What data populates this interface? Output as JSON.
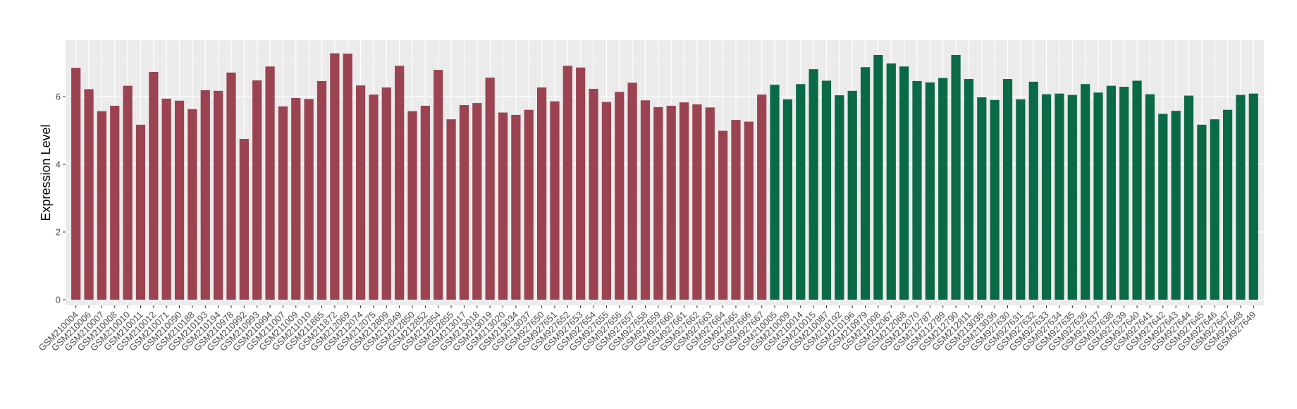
{
  "chart_data": {
    "type": "bar",
    "title": "",
    "xlabel": "",
    "ylabel": "Expression Level",
    "ylim": [
      0,
      7.6
    ],
    "y_ticks": [
      0,
      2,
      4,
      6
    ],
    "y_tick_labels": [
      "0",
      "2",
      "4",
      "6"
    ],
    "grid": true,
    "legend": "none",
    "colors": {
      "group_1": "#9b4350",
      "group_2": "#0b6a46",
      "panel_background": "#ebebeb",
      "grid_major": "#ffffff"
    },
    "categories": [
      "GSM210004",
      "GSM210006",
      "GSM210007",
      "GSM210008",
      "GSM210010",
      "GSM210011",
      "GSM210012",
      "GSM210071",
      "GSM210090",
      "GSM210188",
      "GSM210193",
      "GSM210194",
      "GSM210978",
      "GSM210992",
      "GSM210993",
      "GSM210994",
      "GSM211007",
      "GSM211009",
      "GSM211010",
      "GSM211865",
      "GSM211872",
      "GSM212069",
      "GSM212074",
      "GSM212075",
      "GSM212809",
      "GSM212849",
      "GSM212850",
      "GSM212852",
      "GSM212854",
      "GSM212855",
      "GSM213017",
      "GSM213018",
      "GSM213019",
      "GSM213020",
      "GSM213034",
      "GSM213037",
      "GSM927650",
      "GSM927651",
      "GSM927652",
      "GSM927653",
      "GSM927654",
      "GSM927655",
      "GSM927656",
      "GSM927657",
      "GSM927658",
      "GSM927659",
      "GSM927660",
      "GSM927661",
      "GSM927662",
      "GSM927663",
      "GSM927664",
      "GSM927665",
      "GSM927666",
      "GSM927667",
      "GSM210005",
      "GSM210009",
      "GSM210014",
      "GSM210015",
      "GSM210087",
      "GSM210192",
      "GSM210196",
      "GSM210979",
      "GSM211008",
      "GSM212067",
      "GSM212068",
      "GSM212070",
      "GSM212787",
      "GSM212789",
      "GSM212790",
      "GSM212811",
      "GSM213035",
      "GSM213036",
      "GSM927630",
      "GSM927631",
      "GSM927632",
      "GSM927633",
      "GSM927634",
      "GSM927635",
      "GSM927636",
      "GSM927637",
      "GSM927638",
      "GSM927639",
      "GSM927640",
      "GSM927641",
      "GSM927642",
      "GSM927643",
      "GSM927644",
      "GSM927645",
      "GSM927646",
      "GSM927647",
      "GSM927648",
      "GSM927649"
    ],
    "values": [
      6.85,
      6.22,
      5.57,
      5.73,
      6.32,
      5.17,
      6.73,
      5.94,
      5.88,
      5.63,
      6.19,
      6.17,
      6.71,
      4.75,
      6.48,
      6.89,
      5.71,
      5.96,
      5.93,
      6.46,
      7.28,
      7.27,
      6.33,
      6.06,
      6.27,
      6.91,
      5.57,
      5.73,
      6.79,
      5.33,
      5.75,
      5.81,
      6.56,
      5.53,
      5.46,
      5.61,
      6.27,
      5.86,
      6.91,
      6.86,
      6.23,
      5.84,
      6.14,
      6.41,
      5.89,
      5.69,
      5.73,
      5.83,
      5.77,
      5.68,
      4.99,
      5.31,
      5.26,
      6.06,
      6.35,
      5.92,
      6.37,
      6.81,
      6.47,
      6.04,
      6.17,
      6.87,
      7.23,
      6.98,
      6.89,
      6.46,
      6.42,
      6.55,
      7.23,
      6.52,
      5.98,
      5.9,
      6.52,
      5.92,
      6.44,
      6.07,
      6.09,
      6.05,
      6.37,
      6.12,
      6.32,
      6.29,
      6.47,
      6.07,
      5.49,
      5.58,
      6.03,
      5.17,
      5.33,
      5.61,
      6.05,
      6.09
    ],
    "groups": [
      1,
      1,
      1,
      1,
      1,
      1,
      1,
      1,
      1,
      1,
      1,
      1,
      1,
      1,
      1,
      1,
      1,
      1,
      1,
      1,
      1,
      1,
      1,
      1,
      1,
      1,
      1,
      1,
      1,
      1,
      1,
      1,
      1,
      1,
      1,
      1,
      1,
      1,
      1,
      1,
      1,
      1,
      1,
      1,
      1,
      1,
      1,
      1,
      1,
      1,
      1,
      1,
      1,
      1,
      2,
      2,
      2,
      2,
      2,
      2,
      2,
      2,
      2,
      2,
      2,
      2,
      2,
      2,
      2,
      2,
      2,
      2,
      2,
      2,
      2,
      2,
      2,
      2,
      2,
      2,
      2,
      2,
      2,
      2,
      2,
      2,
      2,
      2,
      2,
      2,
      2,
      2
    ]
  }
}
